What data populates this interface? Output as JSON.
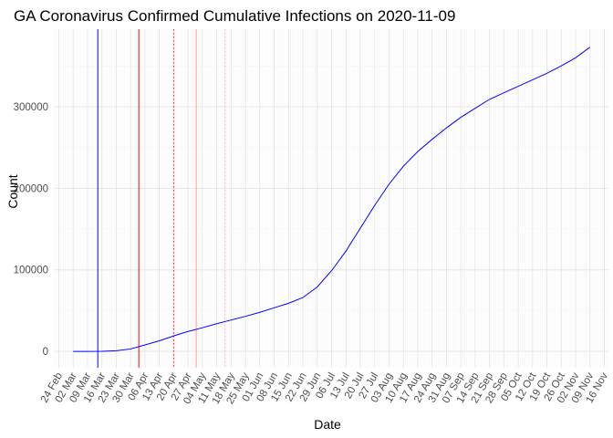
{
  "chart_data": {
    "type": "line",
    "title": "GA Coronavirus Confirmed Cumulative Infections on 2020-11-09",
    "xlabel": "Date",
    "ylabel": "Count",
    "grid": true,
    "xlim": [
      "2020-02-22",
      "2020-11-18"
    ],
    "ylim": [
      -20000,
      395000
    ],
    "x_ticks": [
      "24 Feb",
      "02 Mar",
      "09 Mar",
      "16 Mar",
      "23 Mar",
      "30 Mar",
      "06 Apr",
      "13 Apr",
      "20 Apr",
      "27 Apr",
      "04 May",
      "11 May",
      "18 May",
      "25 May",
      "01 Jun",
      "08 Jun",
      "15 Jun",
      "22 Jun",
      "29 Jun",
      "06 Jul",
      "13 Jul",
      "20 Jul",
      "27 Jul",
      "03 Aug",
      "10 Aug",
      "17 Aug",
      "24 Aug",
      "31 Aug",
      "07 Sep",
      "14 Sep",
      "21 Sep",
      "28 Sep",
      "05 Oct",
      "12 Oct",
      "19 Oct",
      "26 Oct",
      "02 Nov",
      "09 Nov",
      "16 Nov"
    ],
    "y_ticks": [
      "0",
      "100000",
      "200000",
      "300000"
    ],
    "y_tick_values": [
      0,
      100000,
      200000,
      300000
    ],
    "series": [
      {
        "color": "#0000ff",
        "x": [
          "2020-03-02",
          "2020-03-09",
          "2020-03-16",
          "2020-03-23",
          "2020-03-30",
          "2020-04-06",
          "2020-04-13",
          "2020-04-20",
          "2020-04-27",
          "2020-05-04",
          "2020-05-11",
          "2020-05-18",
          "2020-05-25",
          "2020-06-01",
          "2020-06-08",
          "2020-06-15",
          "2020-06-22",
          "2020-06-29",
          "2020-07-06",
          "2020-07-13",
          "2020-07-20",
          "2020-07-27",
          "2020-08-03",
          "2020-08-10",
          "2020-08-17",
          "2020-08-24",
          "2020-08-31",
          "2020-09-07",
          "2020-09-14",
          "2020-09-21",
          "2020-09-28",
          "2020-10-05",
          "2020-10-12",
          "2020-10-19",
          "2020-10-26",
          "2020-11-02",
          "2020-11-09"
        ],
        "y": [
          2,
          17,
          121,
          800,
          3000,
          8000,
          13000,
          19000,
          24500,
          29000,
          34000,
          38500,
          43000,
          48000,
          53500,
          59000,
          66000,
          79000,
          99000,
          123000,
          151000,
          179000,
          205000,
          227000,
          245000,
          260000,
          274000,
          287000,
          298000,
          309000,
          317000,
          325000,
          333000,
          341000,
          350000,
          360000,
          373000
        ]
      }
    ],
    "reference_lines": [
      {
        "x": "2020-03-14",
        "color": "#0000ff",
        "style": "solid"
      },
      {
        "x": "2020-04-03",
        "color": "#ff0000",
        "style": "solid"
      },
      {
        "x": "2020-04-20",
        "color": "#ff0000",
        "style": "dotted"
      },
      {
        "x": "2020-05-01",
        "color": "#ff9999",
        "style": "solid"
      },
      {
        "x": "2020-05-15",
        "color": "#ffaaaa",
        "style": "dotted"
      }
    ]
  }
}
